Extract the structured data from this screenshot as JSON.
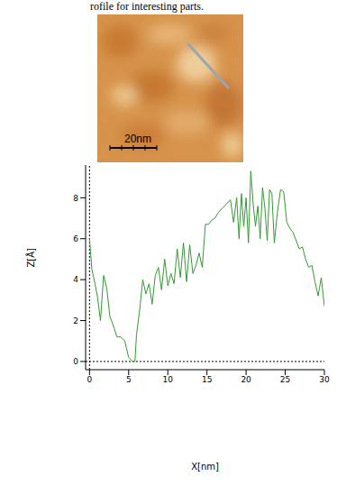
{
  "caption": "rofile for interesting parts.",
  "image": {
    "scale_bar": "20nm"
  },
  "chart_data": {
    "type": "line",
    "x_label": "X[nm]",
    "y_label": "Z[Å]",
    "color": "#339933",
    "xlim": [
      -0.5,
      30
    ],
    "xticks": [
      0,
      5,
      10,
      15,
      20,
      25,
      30
    ],
    "ylim": [
      -0.4,
      9.6
    ],
    "yticks": [
      0,
      2,
      4,
      6,
      8
    ],
    "grid": false,
    "x": [
      0,
      0.3,
      0.7,
      1,
      1.4,
      1.8,
      2.2,
      2.6,
      3,
      3.5,
      4,
      4.5,
      5,
      5.5,
      5.8,
      6,
      6.4,
      6.8,
      7.2,
      7.6,
      8,
      8.4,
      8.8,
      9.2,
      9.6,
      10,
      10.4,
      10.8,
      11.2,
      11.6,
      12,
      12.4,
      12.8,
      13.2,
      13.6,
      14,
      14.4,
      14.8,
      15.2,
      15.6,
      16,
      16.5,
      17,
      17.5,
      18,
      18.4,
      18.8,
      19.1,
      19.4,
      19.7,
      20,
      20.3,
      20.6,
      20.9,
      21.2,
      21.5,
      21.8,
      22.1,
      22.4,
      22.7,
      23,
      23.3,
      23.6,
      24,
      24.4,
      24.8,
      25.2,
      25.6,
      26,
      26.4,
      26.8,
      27.2,
      27.6,
      28,
      28.4,
      28.8,
      29.2,
      29.6,
      30
    ],
    "values": [
      6,
      4.5,
      3.8,
      3.2,
      2,
      4.2,
      3.6,
      2.2,
      1.8,
      1.2,
      1.2,
      1,
      0.2,
      0,
      0,
      1.3,
      2.5,
      4,
      3.3,
      3.8,
      2.8,
      4.2,
      4.6,
      3.5,
      5,
      3.7,
      4.3,
      3.8,
      5.5,
      4.1,
      5.8,
      3.9,
      5.7,
      4.3,
      4.7,
      5.3,
      4.6,
      6.7,
      6.7,
      6.9,
      7,
      7.3,
      7.5,
      7.7,
      7.9,
      6.8,
      8,
      6,
      8.2,
      6.6,
      8,
      5.8,
      9.3,
      7.7,
      6.6,
      7.6,
      6,
      8.5,
      7.5,
      5.9,
      8.4,
      8.2,
      5.8,
      7.3,
      8.4,
      8.3,
      6.8,
      6.5,
      6.3,
      5.9,
      5.5,
      5.6,
      5,
      4.6,
      4.7,
      3.9,
      3.2,
      4.1,
      2.7
    ]
  }
}
